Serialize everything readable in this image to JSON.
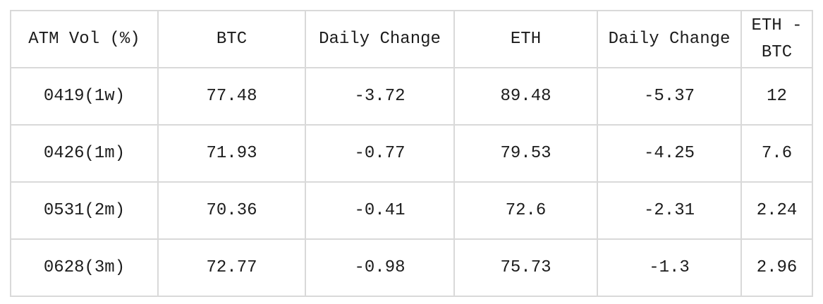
{
  "colors": {
    "background": "#ffffff",
    "border": "#d9d9d9",
    "text": "#1c1c1c"
  },
  "chart_data": {
    "type": "table",
    "title": "ATM Vol (%)",
    "columns": [
      "ATM Vol (%)",
      "BTC",
      "Daily Change",
      "ETH",
      "Daily Change",
      "ETH - BTC"
    ],
    "rows": [
      [
        "0419(1w)",
        "77.48",
        "-3.72",
        "89.48",
        "-5.37",
        "12"
      ],
      [
        "0426(1m)",
        "71.93",
        "-0.77",
        "79.53",
        "-4.25",
        "7.6"
      ],
      [
        "0531(2m)",
        "70.36",
        "-0.41",
        "72.6",
        "-2.31",
        "2.24"
      ],
      [
        "0628(3m)",
        "72.77",
        "-0.98",
        "75.73",
        "-1.3",
        "2.96"
      ]
    ]
  }
}
